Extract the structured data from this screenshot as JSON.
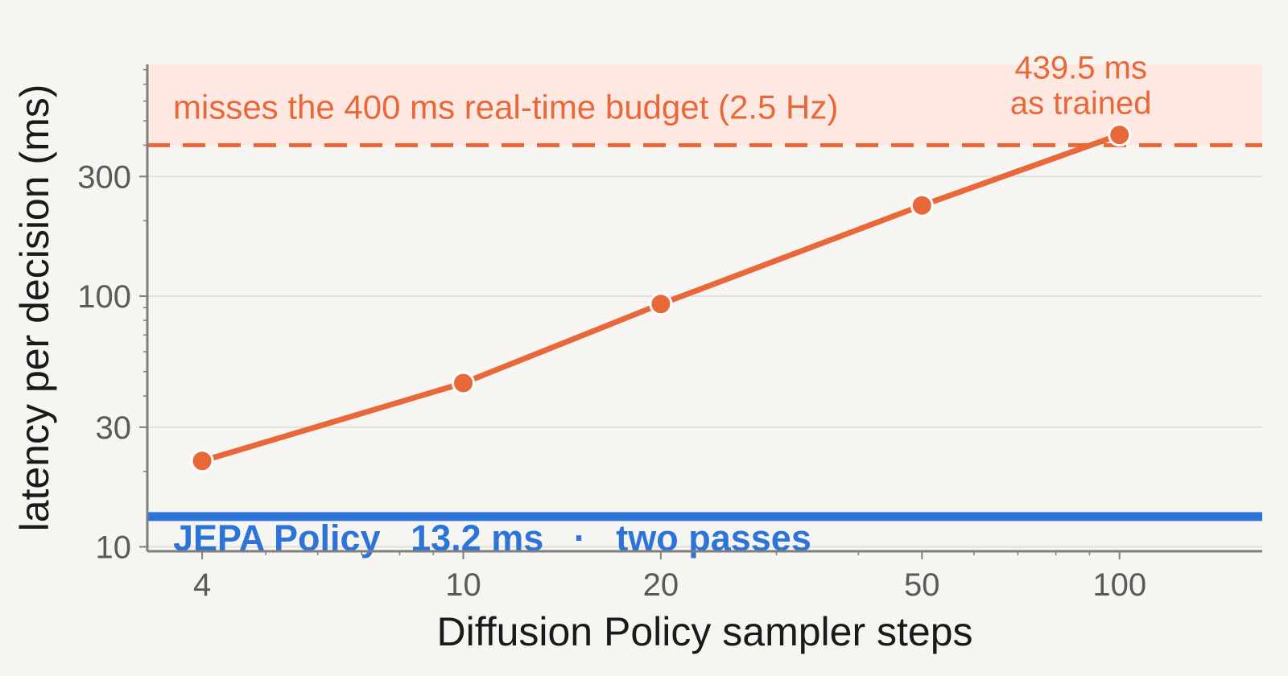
{
  "chart_data": {
    "type": "line",
    "xlabel": "Diffusion Policy sampler steps",
    "ylabel": "latency per decision (ms)",
    "x_scale": "log",
    "y_scale": "log",
    "xlim": [
      3.3,
      165
    ],
    "ylim": [
      9.6,
      840
    ],
    "x_ticks": [
      4,
      10,
      20,
      50,
      100
    ],
    "x_tick_labels": [
      "4",
      "10",
      "20",
      "50",
      "100"
    ],
    "y_ticks": [
      10,
      30,
      100,
      300
    ],
    "y_tick_labels": [
      "10",
      "30",
      "100",
      "300"
    ],
    "grid": true,
    "series": [
      {
        "x": [
          4,
          10,
          20,
          50,
          100
        ],
        "y": [
          22,
          45,
          93,
          230,
          439.5
        ],
        "color": "#e8683a"
      }
    ],
    "budget": {
      "value": 400,
      "label": "misses the 400 ms real-time budget (2.5 Hz)",
      "color": "#e8683a",
      "shade_color": "#fde9e1"
    },
    "point_annotation": {
      "lines": [
        "439.5 ms",
        "as trained"
      ]
    },
    "baseline": {
      "value": 13.2,
      "label": "JEPA Policy   13.2 ms   ·   two passes",
      "color": "#2d74d8"
    }
  }
}
